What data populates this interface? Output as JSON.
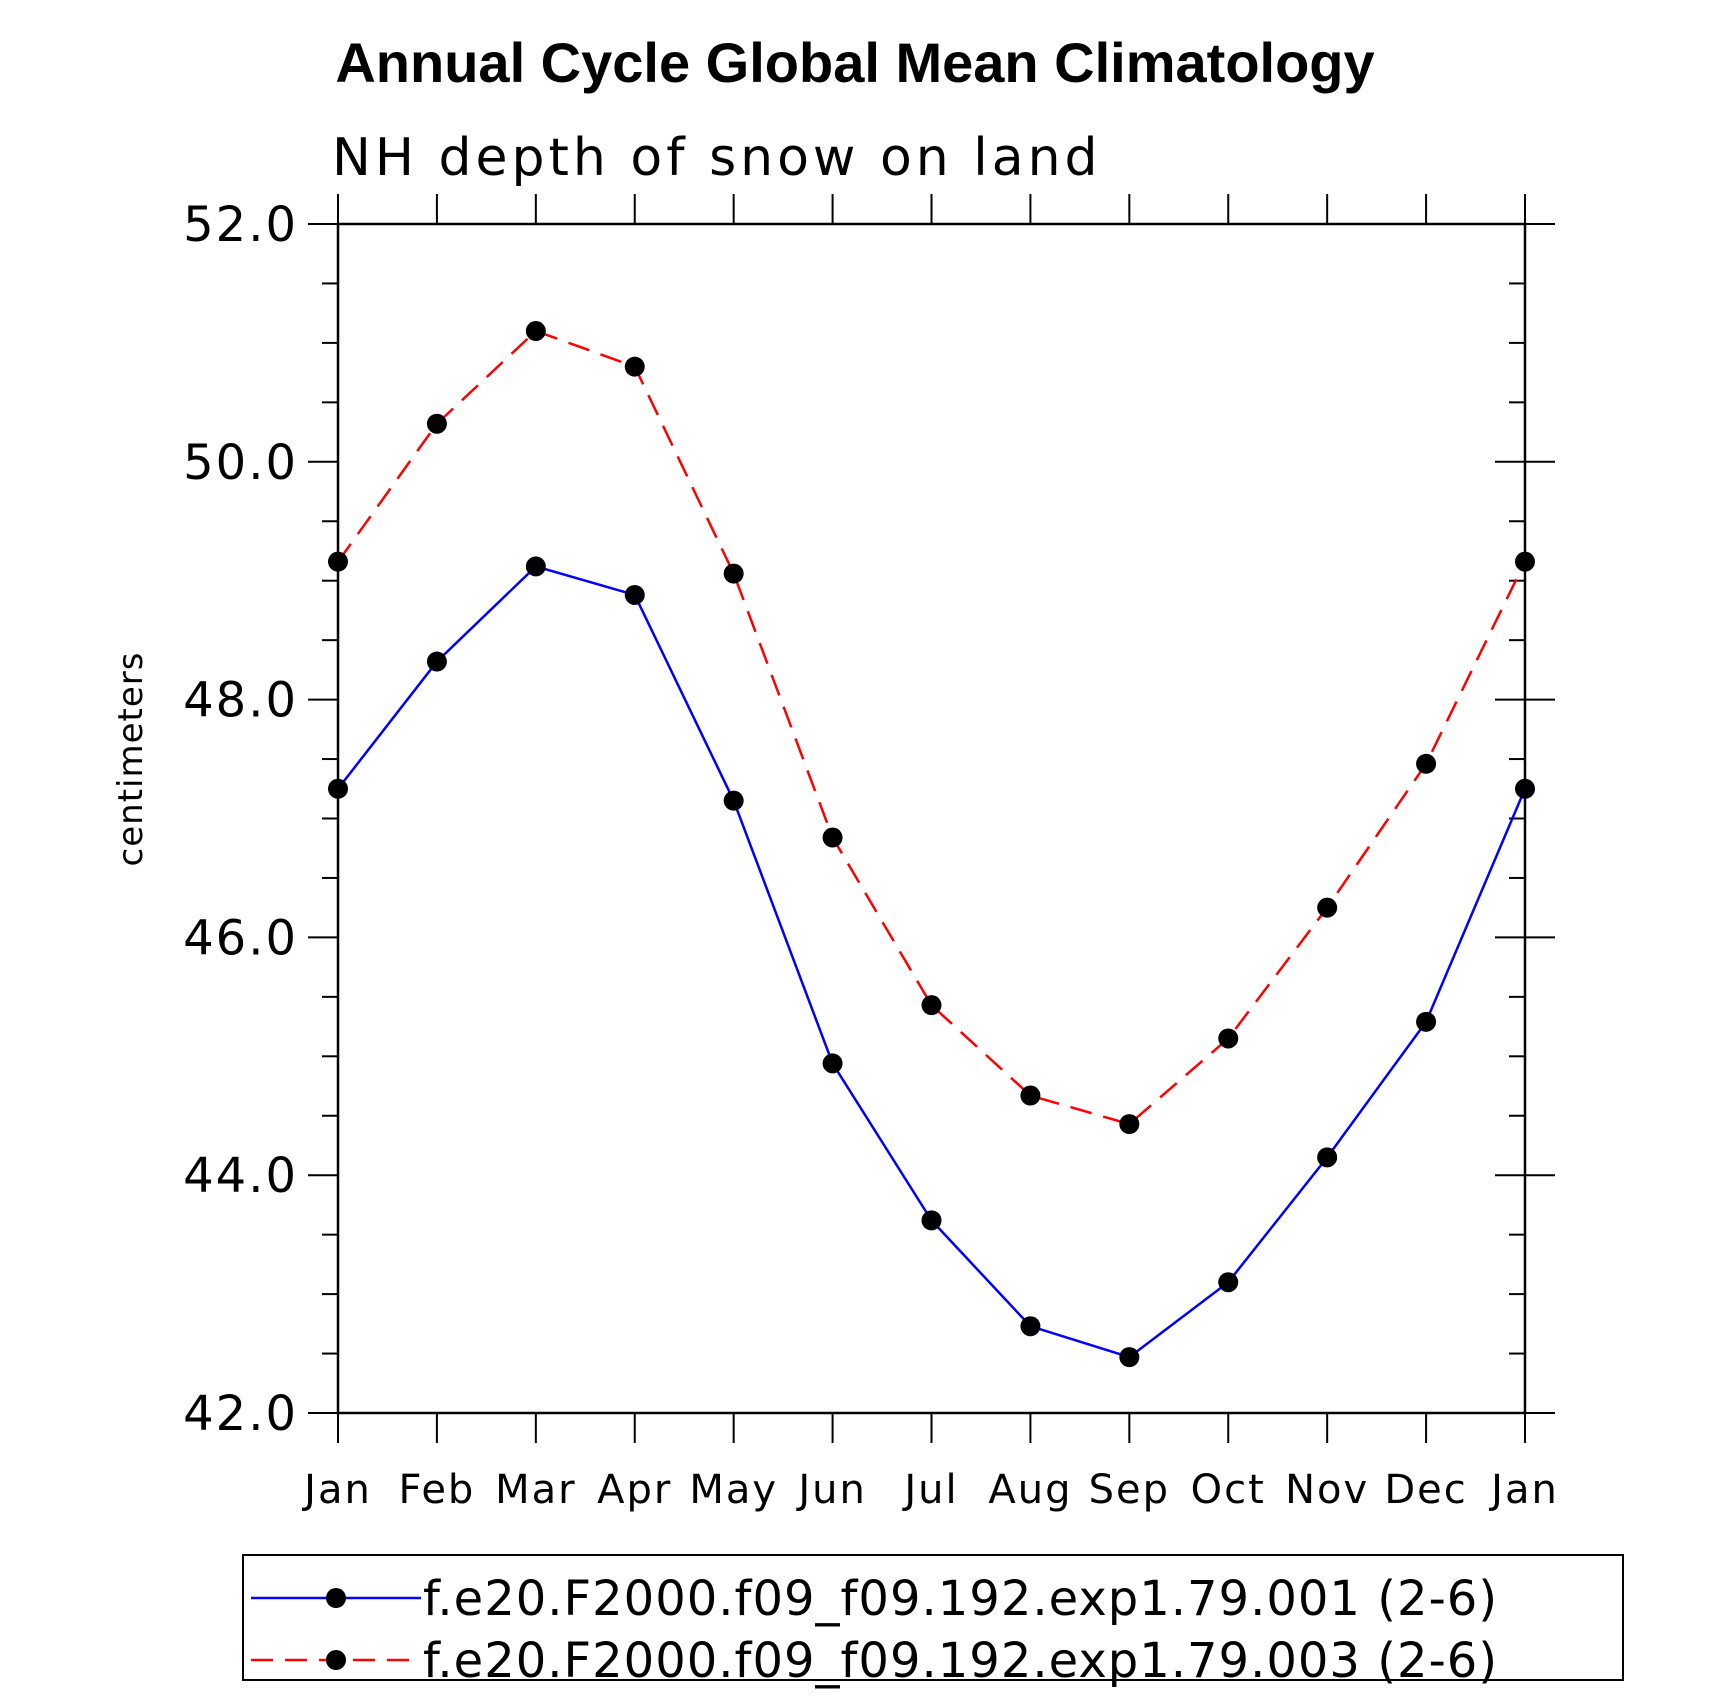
{
  "chart_data": {
    "type": "line",
    "title": "Annual Cycle Global Mean Climatology",
    "subtitle": "NH depth of snow on land",
    "xlabel": "",
    "ylabel": "centimeters",
    "ylim": [
      42.0,
      52.0
    ],
    "yticks": [
      "42.0",
      "44.0",
      "46.0",
      "48.0",
      "50.0",
      "52.0"
    ],
    "categories": [
      "Jan",
      "Feb",
      "Mar",
      "Apr",
      "May",
      "Jun",
      "Jul",
      "Aug",
      "Sep",
      "Oct",
      "Nov",
      "Dec",
      "Jan"
    ],
    "legend_position": "bottom",
    "series": [
      {
        "name": "f.e20.F2000.f09_f09.192.exp1.79.001 (2-6)",
        "color": "#0000ff",
        "dash": "solid",
        "values": [
          47.25,
          48.32,
          49.12,
          48.88,
          47.15,
          44.94,
          43.62,
          42.73,
          42.47,
          43.1,
          44.15,
          45.29,
          47.25
        ]
      },
      {
        "name": "f.e20.F2000.f09_f09.192.exp1.79.003 (2-6)",
        "color": "#ff0000",
        "dash": "dashed",
        "values": [
          49.16,
          50.32,
          51.1,
          50.8,
          49.06,
          46.84,
          45.43,
          44.67,
          44.43,
          45.15,
          46.25,
          47.46,
          49.16
        ]
      }
    ]
  }
}
